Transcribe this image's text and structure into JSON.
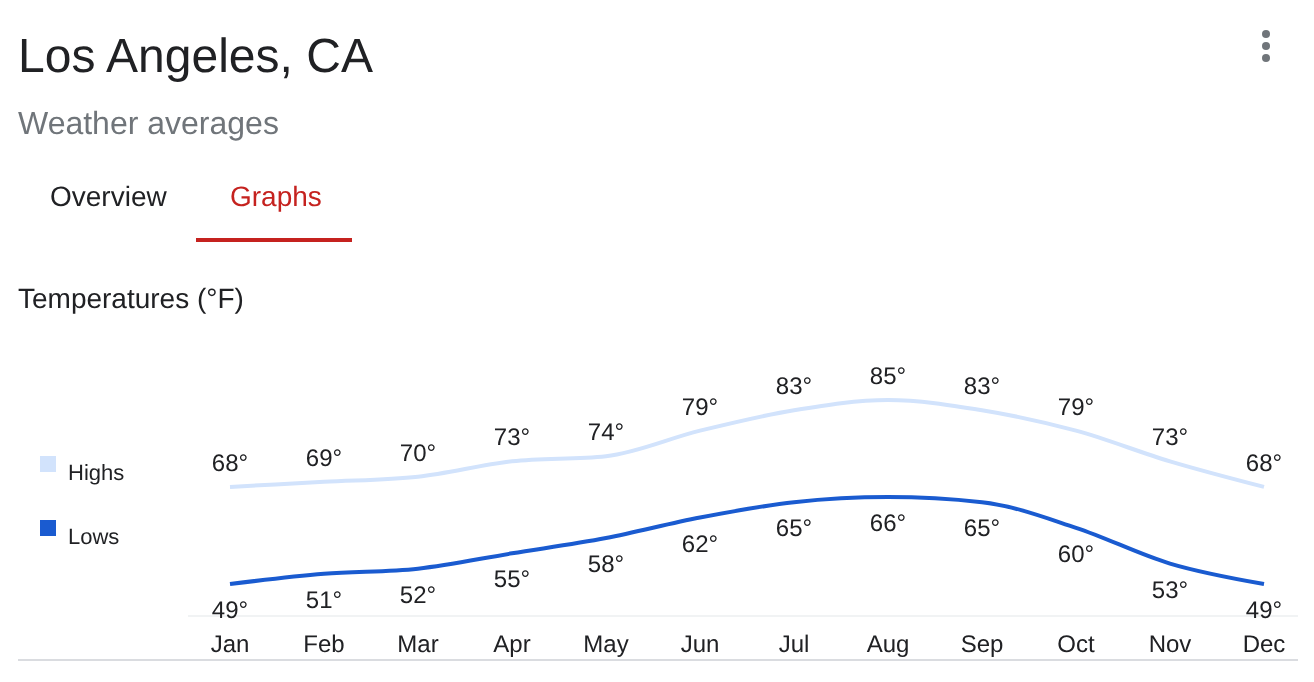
{
  "chart_data": {
    "type": "line",
    "title": "Los Angeles, CA",
    "subtitle": "Weather averages",
    "ylabel": "Temperatures (°F)",
    "annotations": [
      "Overview",
      "Graphs"
    ],
    "categories": [
      "Jan",
      "Feb",
      "Mar",
      "Apr",
      "May",
      "Jun",
      "Jul",
      "Aug",
      "Sep",
      "Oct",
      "Nov",
      "Dec"
    ],
    "series": [
      {
        "name": "Highs",
        "color": "#d2e3fc",
        "values": [
          68,
          69,
          70,
          73,
          74,
          79,
          83,
          85,
          83,
          79,
          73,
          68
        ],
        "value_labels": [
          "68°",
          "69°",
          "70°",
          "73°",
          "74°",
          "79°",
          "83°",
          "85°",
          "83°",
          "79°",
          "73°",
          "68°"
        ]
      },
      {
        "name": "Lows",
        "color": "#1a5bd0",
        "values": [
          49,
          51,
          52,
          55,
          58,
          62,
          65,
          66,
          65,
          60,
          53,
          49
        ],
        "value_labels": [
          "49°",
          "51°",
          "52°",
          "55°",
          "58°",
          "62°",
          "65°",
          "66°",
          "65°",
          "60°",
          "53°",
          "49°"
        ]
      }
    ],
    "legend": "left",
    "marker": "none",
    "line_style": "solid"
  }
}
